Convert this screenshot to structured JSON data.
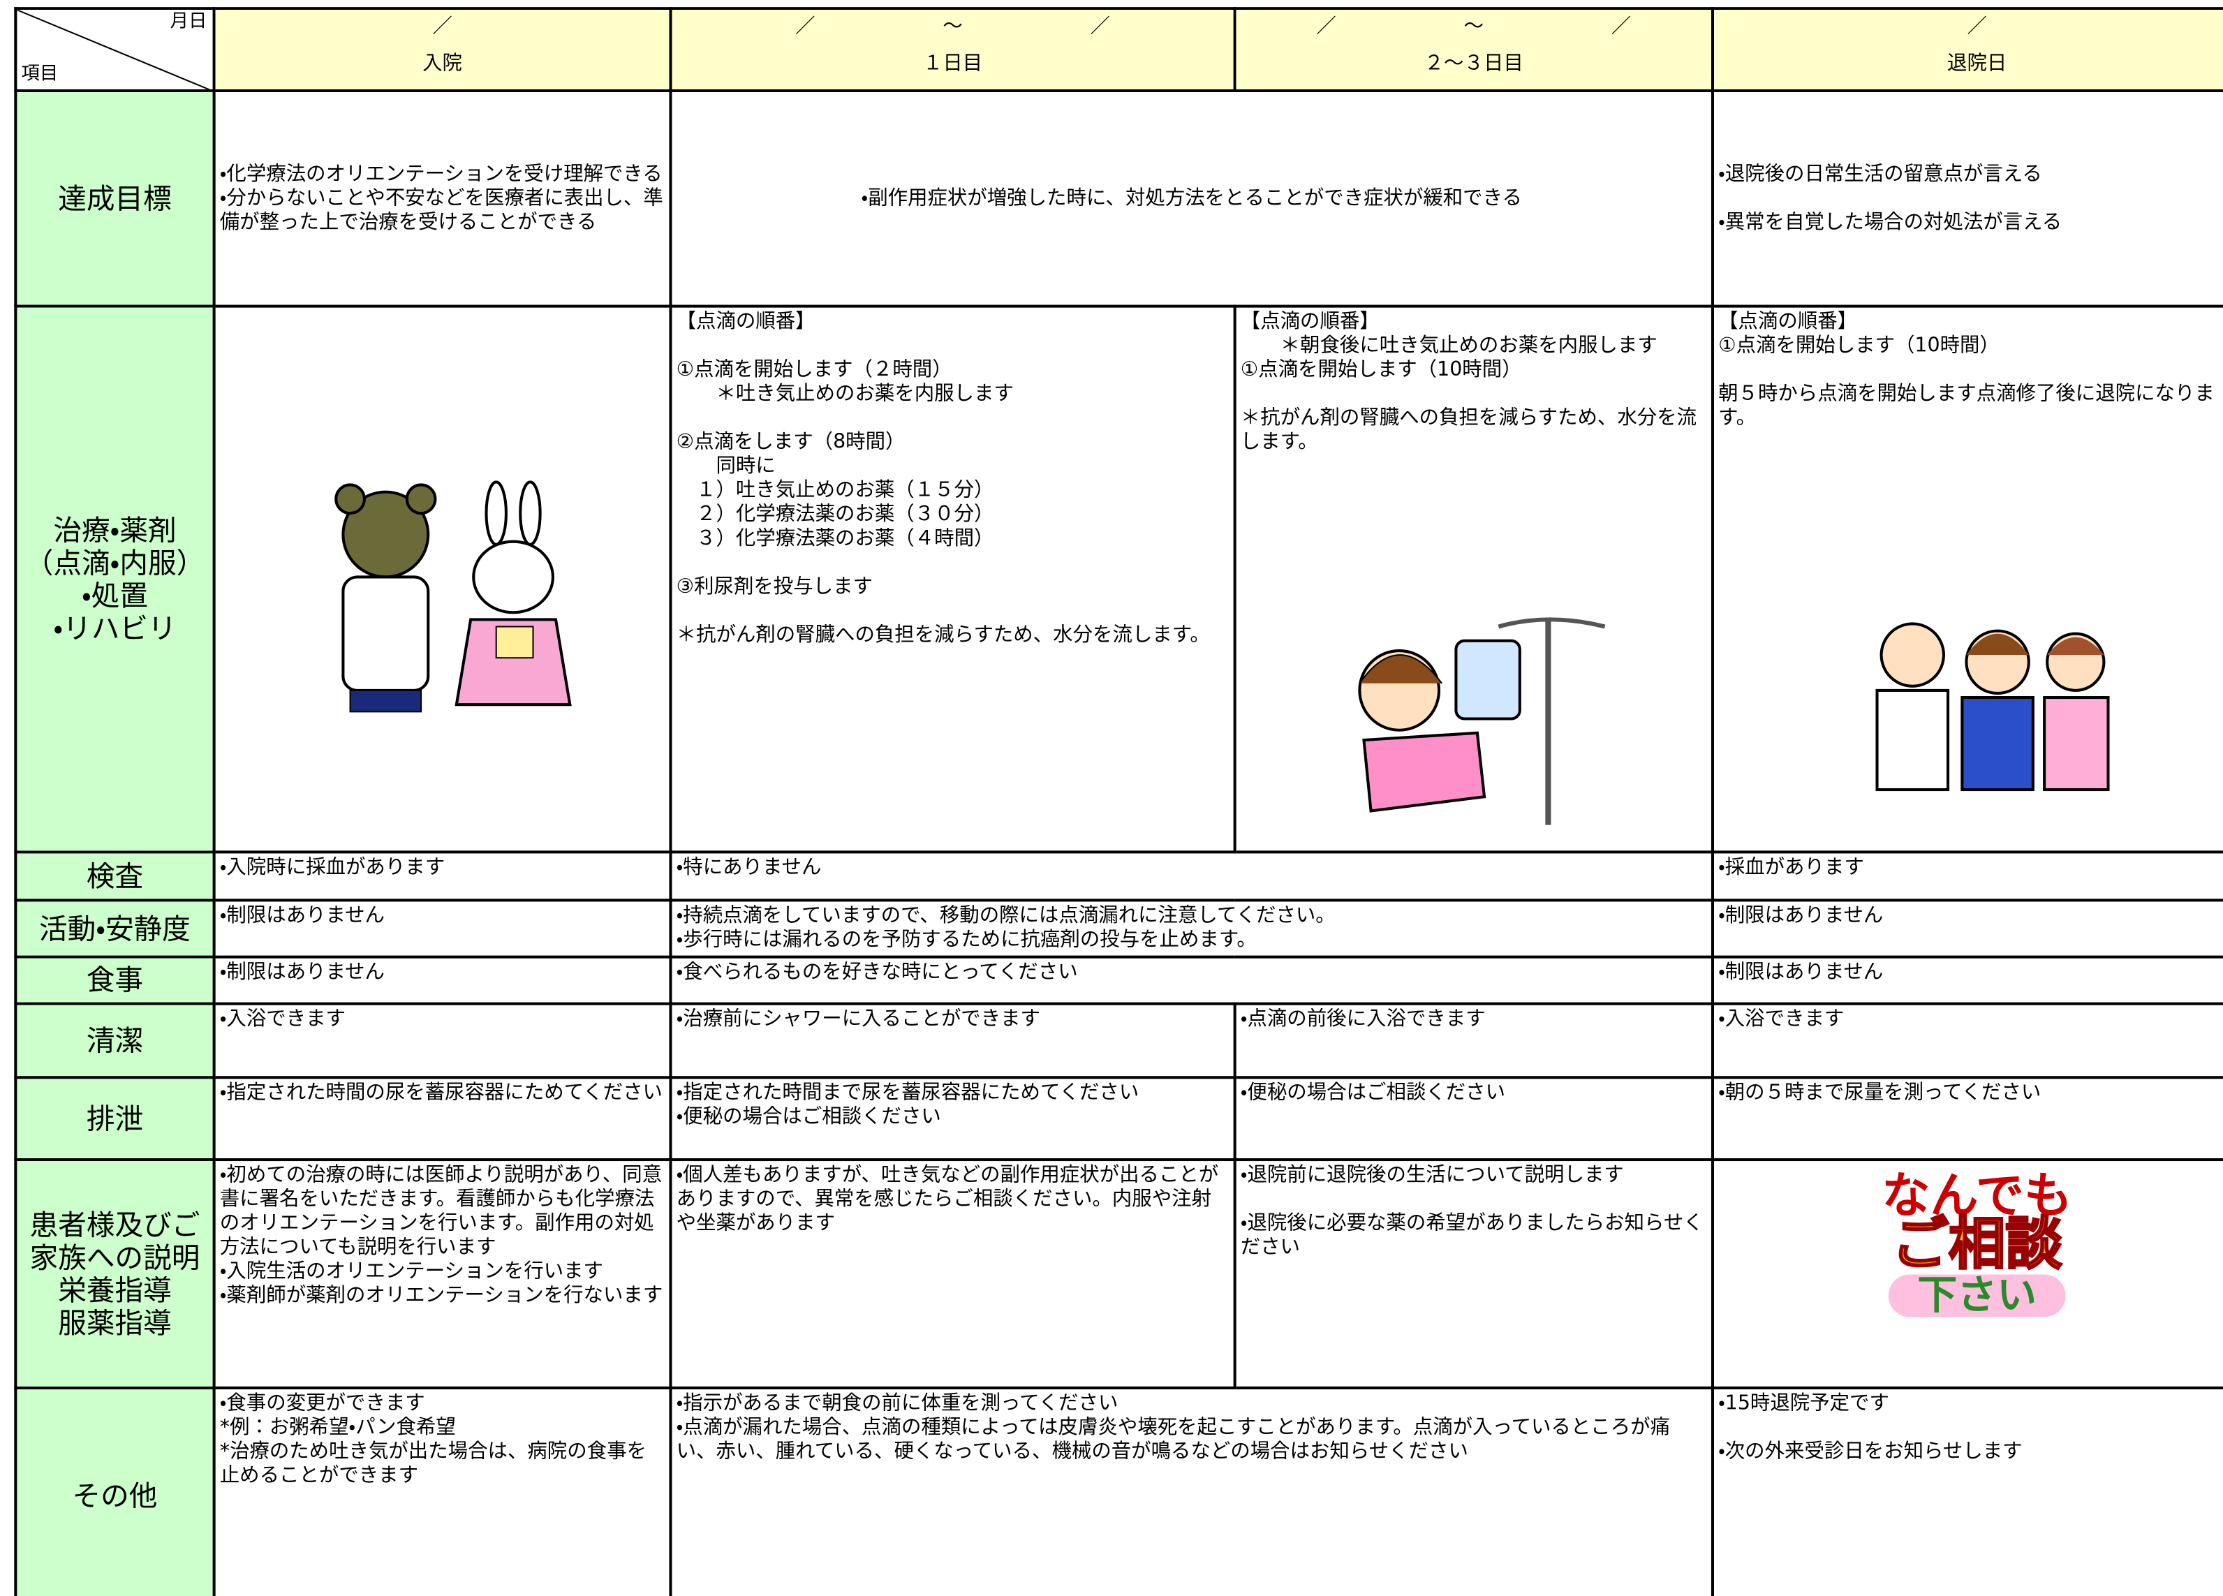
{
  "header": {
    "corner_top": "月日",
    "corner_bottom": "項目",
    "columns": [
      {
        "date": [
          "／"
        ],
        "label": "入院"
      },
      {
        "date": [
          "／",
          "～",
          "／"
        ],
        "label": "１日目"
      },
      {
        "date": [
          "／",
          "～",
          "／"
        ],
        "label": "２～３日目"
      },
      {
        "date": [
          "／"
        ],
        "label": "退院日"
      }
    ]
  },
  "rows": [
    {
      "label": [
        "達成目標"
      ],
      "cells": [
        [
          [
            "・化学療法のオリエンテーションを受け理解できる",
            "・分からないことや不安などを医療者に表出し、準備が整った上で治療を受けることができる"
          ]
        ],
        [
          [
            "・副作用症状が増強した時に、対処方法をとることができ症状が緩和できる"
          ]
        ],
        [
          [
            "・退院後の日常生活の留意点が言える"
          ],
          [
            "・異常を自覚した場合の対処法が言える"
          ]
        ]
      ]
    },
    {
      "label": [
        "治療・薬剤",
        "（点滴・内服）",
        "・処置",
        "・リハビリ"
      ],
      "cells": [
        [],
        [
          [
            "【点滴の順番】"
          ],
          [
            "①点滴を開始します（２時間）",
            "　　＊吐き気止めのお薬を内服します"
          ],
          [
            "②点滴をします（8時間）",
            "　　同時に",
            "　１）吐き気止めのお薬（１５分）",
            "　２）化学療法薬のお薬（３０分）",
            "　３）化学療法薬のお薬（４時間）"
          ],
          [
            "③利尿剤を投与します"
          ],
          [
            "＊抗がん剤の腎臓への負担を減らすため、水分を流します。"
          ]
        ],
        [
          [
            "【点滴の順番】",
            "　　＊朝食後に吐き気止めのお薬を内服します",
            "①点滴を開始します（10時間）"
          ],
          [
            "＊抗がん剤の腎臓への負担を減らすため、水分を流します。"
          ]
        ],
        [
          [
            "【点滴の順番】",
            "①点滴を開始します（10時間）"
          ],
          [
            "朝５時から点滴を開始します点滴修了後に退院になります。"
          ]
        ]
      ]
    },
    {
      "label": [
        "検査"
      ],
      "cells": [
        [
          [
            "・入院時に採血があります"
          ]
        ],
        [
          [
            "・特にありません"
          ]
        ],
        [
          [
            "・採血があります"
          ]
        ]
      ]
    },
    {
      "label": [
        "活動・安静度"
      ],
      "cells": [
        [
          [
            "・制限はありません"
          ]
        ],
        [
          [
            "・持続点滴をしていますので、移動の際には点滴漏れに注意してください。",
            "・歩行時には漏れるのを予防するために抗癌剤の投与を止めます。"
          ]
        ],
        [
          [
            "・制限はありません"
          ]
        ]
      ]
    },
    {
      "label": [
        "食事"
      ],
      "cells": [
        [
          [
            "・制限はありません"
          ]
        ],
        [
          [
            "・食べられるものを好きな時にとってください"
          ]
        ],
        [
          [
            "・制限はありません"
          ]
        ]
      ]
    },
    {
      "label": [
        "清潔"
      ],
      "cells": [
        [
          [
            "・入浴できます"
          ]
        ],
        [
          [
            "・治療前にシャワーに入ることができます"
          ]
        ],
        [
          [
            "・点滴の前後に入浴できます"
          ]
        ],
        [
          [
            "・入浴できます"
          ]
        ]
      ]
    },
    {
      "label": [
        "排泄"
      ],
      "cells": [
        [
          [
            "・指定された時間の尿を蓄尿容器にためてください"
          ]
        ],
        [
          [
            "・指定された時間まで尿を蓄尿容器にためてください",
            "・便秘の場合はご相談ください"
          ]
        ],
        [
          [
            "・便秘の場合はご相談ください"
          ]
        ],
        [
          [
            "・朝の５時まで尿量を測ってください"
          ]
        ]
      ]
    },
    {
      "label": [
        "患者様及びご家族への説明",
        "栄養指導",
        "服薬指導"
      ],
      "cells": [
        [
          [
            "・初めての治療の時には医師より説明があり、同意書に署名をいただきます。看護師からも化学療法のオリエンテーションを行います。副作用の対処方法についても説明を行います",
            "・入院生活のオリエンテーションを行います",
            "・薬剤師が薬剤のオリエンテーションを行ないます"
          ]
        ],
        [
          [
            "・個人差もありますが、吐き気などの副作用症状が出ることがありますので、異常を感じたらご相談ください。内服や注射や坐薬があります"
          ]
        ],
        [
          [
            "・退院前に退院後の生活について説明します"
          ],
          [
            "・退院後に必要な薬の希望がありましたらお知らせください"
          ]
        ],
        [
          [
            "なんでも",
            "ご相談",
            "下さい"
          ]
        ]
      ]
    },
    {
      "label": [
        "その他"
      ],
      "cells": [
        [
          [
            "・食事の変更ができます",
            "*例：お粥希望・パン食希望",
            "*治療のため吐き気が出た場合は、病院の食事を止めることができます"
          ]
        ],
        [
          [
            "・指示があるまで朝食の前に体重を測ってください",
            "・点滴が漏れた場合、点滴の種類によっては皮膚炎や壊死を起こすことがあります。点滴が入っているところが痛い、赤い、腫れている、硬くなっている、機械の音が鳴るなどの場合はお知らせください"
          ]
        ],
        [
          [
            "・15時退院予定です"
          ],
          [
            "・次の外来受診日をお知らせします"
          ]
        ]
      ]
    }
  ]
}
